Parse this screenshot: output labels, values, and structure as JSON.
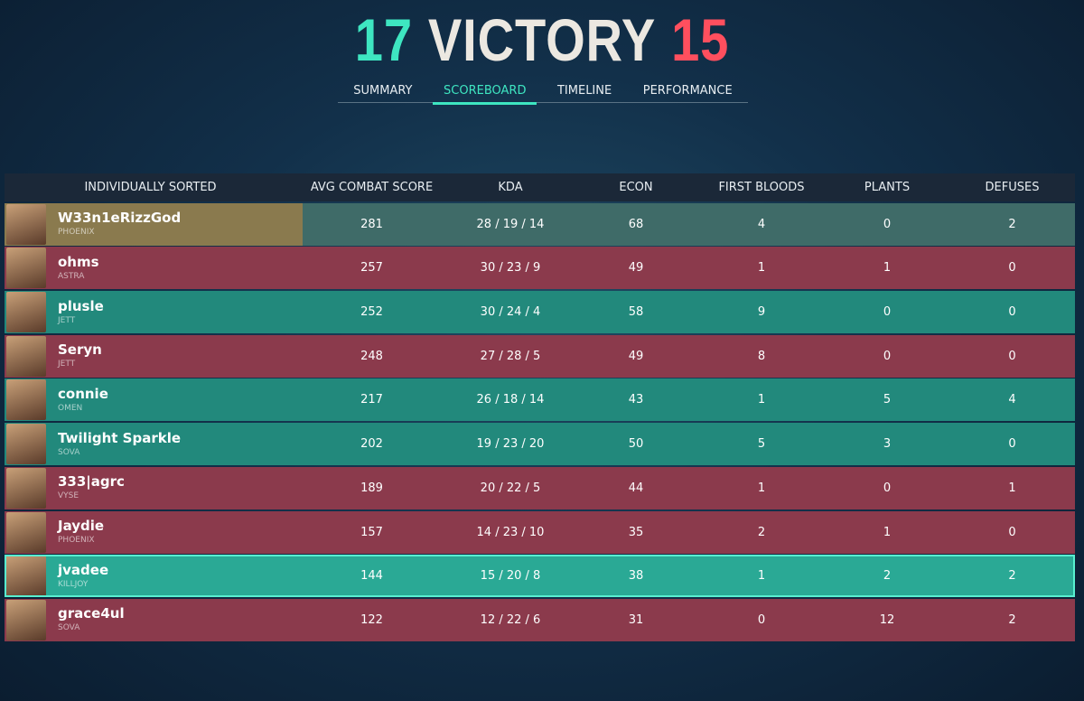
{
  "header": {
    "score_left": "17",
    "result": "VICTORY",
    "score_right": "15"
  },
  "tabs": [
    "SUMMARY",
    "SCOREBOARD",
    "TIMELINE",
    "PERFORMANCE"
  ],
  "active_tab": 1,
  "table": {
    "columns": [
      "INDIVIDUALLY SORTED",
      "AVG COMBAT SCORE",
      "KDA",
      "ECON",
      "FIRST BLOODS",
      "PLANTS",
      "DEFUSES"
    ],
    "rows": [
      {
        "name": "W33n1eRizzGod",
        "agent": "PHOENIX",
        "acs": 281,
        "kda": "28 / 19 / 14",
        "econ": 68,
        "first_bloods": 4,
        "plants": 0,
        "defuses": 2,
        "color": "#8a7a4e"
      },
      {
        "name": "ohms",
        "agent": "ASTRA",
        "acs": 257,
        "kda": "30 / 23 / 9",
        "econ": 49,
        "first_bloods": 1,
        "plants": 1,
        "defuses": 0,
        "color": "#8b3a4c"
      },
      {
        "name": "plusle",
        "agent": "JETT",
        "acs": 252,
        "kda": "30 / 24 / 4",
        "econ": 58,
        "first_bloods": 9,
        "plants": 0,
        "defuses": 0,
        "color": "#22897c"
      },
      {
        "name": "Seryn",
        "agent": "JETT",
        "acs": 248,
        "kda": "27 / 28 / 5",
        "econ": 49,
        "first_bloods": 8,
        "plants": 0,
        "defuses": 0,
        "color": "#8b3a4c"
      },
      {
        "name": "connie",
        "agent": "OMEN",
        "acs": 217,
        "kda": "26 / 18 / 14",
        "econ": 43,
        "first_bloods": 1,
        "plants": 5,
        "defuses": 4,
        "color": "#22897c"
      },
      {
        "name": "Twilight Sparkle",
        "agent": "SOVA",
        "acs": 202,
        "kda": "19 / 23 / 20",
        "econ": 50,
        "first_bloods": 5,
        "plants": 3,
        "defuses": 0,
        "color": "#22897c"
      },
      {
        "name": "333|agrc",
        "agent": "VYSE",
        "acs": 189,
        "kda": "20 / 22 / 5",
        "econ": 44,
        "first_bloods": 1,
        "plants": 0,
        "defuses": 1,
        "color": "#8b3a4c"
      },
      {
        "name": "Jaydie",
        "agent": "PHOENIX",
        "acs": 157,
        "kda": "14 / 23 / 10",
        "econ": 35,
        "first_bloods": 2,
        "plants": 1,
        "defuses": 0,
        "color": "#8b3a4c"
      },
      {
        "name": "jvadee",
        "agent": "KILLJOY",
        "acs": 144,
        "kda": "15 / 20 / 8",
        "econ": 38,
        "first_bloods": 1,
        "plants": 2,
        "defuses": 2,
        "color": "#2aa995"
      },
      {
        "name": "grace4ul",
        "agent": "SOVA",
        "acs": 122,
        "kda": "12 / 22 / 6",
        "econ": 31,
        "first_bloods": 0,
        "plants": 12,
        "defuses": 2,
        "color": "#8b3a4c"
      }
    ]
  }
}
